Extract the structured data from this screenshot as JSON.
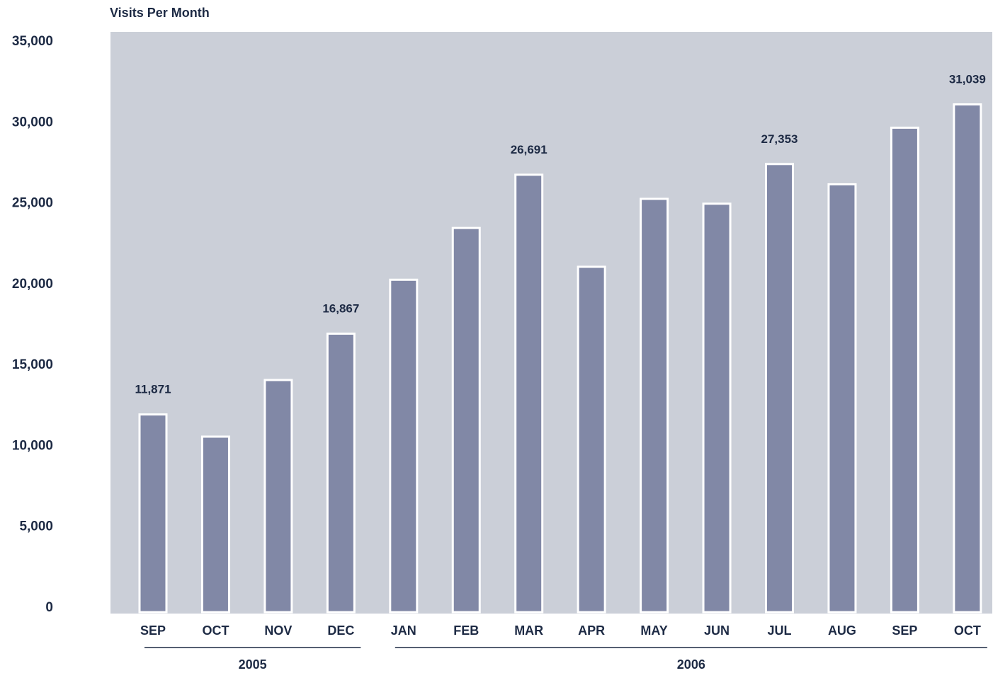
{
  "chart_data": {
    "type": "bar",
    "title": "Visits Per Month",
    "xlabel": "",
    "ylabel": "",
    "ylim": [
      0,
      35000
    ],
    "yticks": [
      {
        "value": 0,
        "label": "0"
      },
      {
        "value": 5000,
        "label": "5,000"
      },
      {
        "value": 10000,
        "label": "10,000"
      },
      {
        "value": 15000,
        "label": "15,000"
      },
      {
        "value": 20000,
        "label": "20,000"
      },
      {
        "value": 25000,
        "label": "25,000"
      },
      {
        "value": 30000,
        "label": "30,000"
      },
      {
        "value": 35000,
        "label": "35,000"
      }
    ],
    "categories": [
      "SEP",
      "OCT",
      "NOV",
      "DEC",
      "JAN",
      "FEB",
      "MAR",
      "APR",
      "MAY",
      "JUN",
      "JUL",
      "AUG",
      "SEP",
      "OCT"
    ],
    "values": [
      11871,
      10500,
      14000,
      16867,
      20200,
      23400,
      26691,
      21000,
      25200,
      24900,
      27353,
      26100,
      29600,
      31039
    ],
    "data_labels": [
      {
        "index": 0,
        "text": "11,871"
      },
      {
        "index": 3,
        "text": "16,867"
      },
      {
        "index": 6,
        "text": "26,691"
      },
      {
        "index": 10,
        "text": "27,353"
      },
      {
        "index": 13,
        "text": "31,039"
      }
    ],
    "groups": [
      {
        "label": "2005",
        "start": 0,
        "end": 3
      },
      {
        "label": "2006",
        "start": 4,
        "end": 13
      }
    ],
    "grid": false,
    "colors": {
      "plot_background": "#cbcfd8",
      "bar_fill": "#8188a6",
      "bar_stroke": "#ffffff",
      "text": "#1d2a44"
    }
  }
}
